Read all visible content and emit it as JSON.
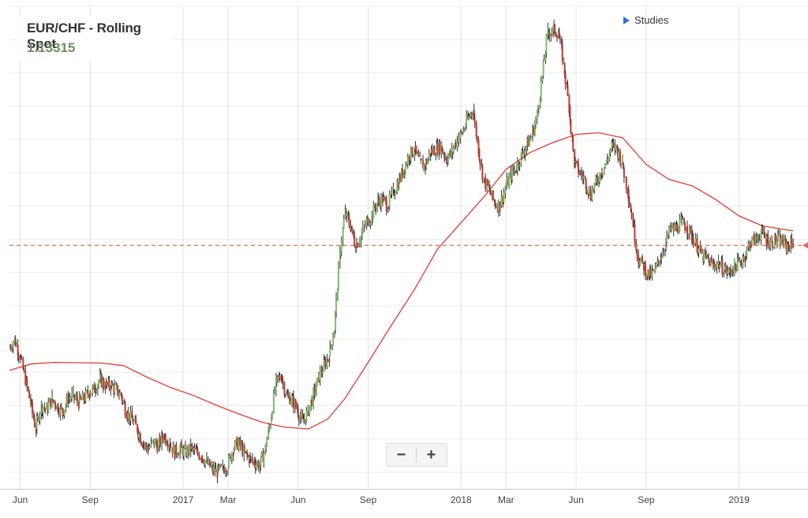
{
  "header": {
    "title": "EUR/CHF - Rolling Spot",
    "price": "1.13315"
  },
  "studies_label": "Studies",
  "zoom": {
    "minus": "−",
    "plus": "+"
  },
  "colors": {
    "up": "#7fbf6a",
    "down": "#c0392b",
    "wick": "#333333",
    "ma": "#e23a2e",
    "price_line": "#e2694f",
    "grid": "#ececec",
    "vgrid": "#e2e2e2"
  },
  "chart_data": {
    "type": "line",
    "title": "EUR/CHF - Rolling Spot",
    "last_price": 1.13315,
    "x_start": "2016-05-18",
    "x_end": "2019-03-18",
    "ylim": [
      1.06,
      1.205
    ],
    "grid": true,
    "x_ticks": [
      {
        "label": "Jun",
        "date": "2016-06-01"
      },
      {
        "label": "Sep",
        "date": "2016-09-01"
      },
      {
        "label": "2017",
        "date": "2017-01-01"
      },
      {
        "label": "Mar",
        "date": "2017-03-01"
      },
      {
        "label": "Jun",
        "date": "2017-06-01"
      },
      {
        "label": "Sep",
        "date": "2017-09-01"
      },
      {
        "label": "2018",
        "date": "2018-01-01"
      },
      {
        "label": "Mar",
        "date": "2018-03-01"
      },
      {
        "label": "Jun",
        "date": "2018-06-01"
      },
      {
        "label": "Sep",
        "date": "2018-09-01"
      },
      {
        "label": "2019",
        "date": "2019-01-01"
      }
    ],
    "series": [
      {
        "style": "candlestick",
        "points": [
          [
            "2016-05-18",
            1.102
          ],
          [
            "2016-05-25",
            1.105
          ],
          [
            "2016-06-01",
            1.1
          ],
          [
            "2016-06-08",
            1.093
          ],
          [
            "2016-06-15",
            1.086
          ],
          [
            "2016-06-22",
            1.078
          ],
          [
            "2016-06-29",
            1.085
          ],
          [
            "2016-07-06",
            1.084
          ],
          [
            "2016-07-13",
            1.087
          ],
          [
            "2016-07-20",
            1.085
          ],
          [
            "2016-07-27",
            1.083
          ],
          [
            "2016-08-03",
            1.087
          ],
          [
            "2016-08-10",
            1.088
          ],
          [
            "2016-08-17",
            1.086
          ],
          [
            "2016-08-24",
            1.087
          ],
          [
            "2016-08-31",
            1.089
          ],
          [
            "2016-09-07",
            1.09
          ],
          [
            "2016-09-14",
            1.093
          ],
          [
            "2016-09-21",
            1.091
          ],
          [
            "2016-09-28",
            1.091
          ],
          [
            "2016-10-05",
            1.09
          ],
          [
            "2016-10-12",
            1.088
          ],
          [
            "2016-10-19",
            1.083
          ],
          [
            "2016-10-26",
            1.081
          ],
          [
            "2016-11-02",
            1.078
          ],
          [
            "2016-11-09",
            1.074
          ],
          [
            "2016-11-16",
            1.072
          ],
          [
            "2016-11-23",
            1.074
          ],
          [
            "2016-11-30",
            1.073
          ],
          [
            "2016-12-07",
            1.076
          ],
          [
            "2016-12-14",
            1.074
          ],
          [
            "2016-12-21",
            1.071
          ],
          [
            "2016-12-28",
            1.072
          ],
          [
            "2017-01-04",
            1.071
          ],
          [
            "2017-01-11",
            1.072
          ],
          [
            "2017-01-18",
            1.071
          ],
          [
            "2017-01-25",
            1.07
          ],
          [
            "2017-02-01",
            1.068
          ],
          [
            "2017-02-08",
            1.066
          ],
          [
            "2017-02-15",
            1.065
          ],
          [
            "2017-02-22",
            1.066
          ],
          [
            "2017-03-01",
            1.067
          ],
          [
            "2017-03-08",
            1.072
          ],
          [
            "2017-03-15",
            1.074
          ],
          [
            "2017-03-22",
            1.071
          ],
          [
            "2017-03-29",
            1.069
          ],
          [
            "2017-04-05",
            1.068
          ],
          [
            "2017-04-12",
            1.067
          ],
          [
            "2017-04-19",
            1.072
          ],
          [
            "2017-04-26",
            1.08
          ],
          [
            "2017-05-03",
            1.092
          ],
          [
            "2017-05-10",
            1.094
          ],
          [
            "2017-05-17",
            1.088
          ],
          [
            "2017-05-24",
            1.087
          ],
          [
            "2017-05-31",
            1.084
          ],
          [
            "2017-06-07",
            1.08
          ],
          [
            "2017-06-14",
            1.083
          ],
          [
            "2017-06-21",
            1.088
          ],
          [
            "2017-06-28",
            1.093
          ],
          [
            "2017-07-05",
            1.097
          ],
          [
            "2017-07-12",
            1.1
          ],
          [
            "2017-07-19",
            1.108
          ],
          [
            "2017-07-26",
            1.13
          ],
          [
            "2017-08-02",
            1.143
          ],
          [
            "2017-08-09",
            1.139
          ],
          [
            "2017-08-16",
            1.133
          ],
          [
            "2017-08-23",
            1.136
          ],
          [
            "2017-08-30",
            1.14
          ],
          [
            "2017-09-06",
            1.142
          ],
          [
            "2017-09-13",
            1.146
          ],
          [
            "2017-09-20",
            1.147
          ],
          [
            "2017-09-27",
            1.145
          ],
          [
            "2017-10-04",
            1.149
          ],
          [
            "2017-10-11",
            1.152
          ],
          [
            "2017-10-18",
            1.156
          ],
          [
            "2017-10-25",
            1.16
          ],
          [
            "2017-11-01",
            1.162
          ],
          [
            "2017-11-08",
            1.158
          ],
          [
            "2017-11-15",
            1.157
          ],
          [
            "2017-11-22",
            1.161
          ],
          [
            "2017-11-29",
            1.162
          ],
          [
            "2017-12-06",
            1.163
          ],
          [
            "2017-12-13",
            1.159
          ],
          [
            "2017-12-20",
            1.161
          ],
          [
            "2017-12-27",
            1.165
          ],
          [
            "2018-01-03",
            1.167
          ],
          [
            "2018-01-10",
            1.171
          ],
          [
            "2018-01-17",
            1.174
          ],
          [
            "2018-01-24",
            1.162
          ],
          [
            "2018-01-31",
            1.153
          ],
          [
            "2018-02-07",
            1.15
          ],
          [
            "2018-02-14",
            1.146
          ],
          [
            "2018-02-21",
            1.145
          ],
          [
            "2018-02-28",
            1.15
          ],
          [
            "2018-03-07",
            1.154
          ],
          [
            "2018-03-14",
            1.156
          ],
          [
            "2018-03-21",
            1.16
          ],
          [
            "2018-03-28",
            1.163
          ],
          [
            "2018-04-04",
            1.166
          ],
          [
            "2018-04-11",
            1.172
          ],
          [
            "2018-04-18",
            1.184
          ],
          [
            "2018-04-25",
            1.197
          ],
          [
            "2018-05-02",
            1.198
          ],
          [
            "2018-05-09",
            1.197
          ],
          [
            "2018-05-16",
            1.188
          ],
          [
            "2018-05-23",
            1.175
          ],
          [
            "2018-05-30",
            1.158
          ],
          [
            "2018-06-06",
            1.155
          ],
          [
            "2018-06-13",
            1.153
          ],
          [
            "2018-06-20",
            1.148
          ],
          [
            "2018-06-27",
            1.152
          ],
          [
            "2018-07-04",
            1.155
          ],
          [
            "2018-07-11",
            1.158
          ],
          [
            "2018-07-18",
            1.163
          ],
          [
            "2018-07-25",
            1.162
          ],
          [
            "2018-08-01",
            1.158
          ],
          [
            "2018-08-08",
            1.15
          ],
          [
            "2018-08-15",
            1.14
          ],
          [
            "2018-08-22",
            1.129
          ],
          [
            "2018-08-29",
            1.127
          ],
          [
            "2018-09-05",
            1.124
          ],
          [
            "2018-09-12",
            1.125
          ],
          [
            "2018-09-19",
            1.129
          ],
          [
            "2018-09-26",
            1.133
          ],
          [
            "2018-10-03",
            1.138
          ],
          [
            "2018-10-10",
            1.138
          ],
          [
            "2018-10-17",
            1.14
          ],
          [
            "2018-10-24",
            1.139
          ],
          [
            "2018-10-31",
            1.136
          ],
          [
            "2018-11-07",
            1.133
          ],
          [
            "2018-11-14",
            1.13
          ],
          [
            "2018-11-21",
            1.129
          ],
          [
            "2018-11-28",
            1.127
          ],
          [
            "2018-12-05",
            1.128
          ],
          [
            "2018-12-12",
            1.126
          ],
          [
            "2018-12-19",
            1.125
          ],
          [
            "2018-12-26",
            1.127
          ],
          [
            "2019-01-02",
            1.128
          ],
          [
            "2019-01-09",
            1.13
          ],
          [
            "2019-01-16",
            1.134
          ],
          [
            "2019-01-23",
            1.135
          ],
          [
            "2019-01-30",
            1.137
          ],
          [
            "2019-02-06",
            1.135
          ],
          [
            "2019-02-13",
            1.134
          ],
          [
            "2019-02-20",
            1.135
          ],
          [
            "2019-02-27",
            1.134
          ],
          [
            "2019-03-06",
            1.133
          ],
          [
            "2019-03-13",
            1.134
          ]
        ]
      },
      {
        "style": "moving-average",
        "points": [
          [
            "2016-05-18",
            1.0956
          ],
          [
            "2016-06-15",
            1.0975
          ],
          [
            "2016-07-15",
            1.098
          ],
          [
            "2016-08-15",
            1.0979
          ],
          [
            "2016-09-15",
            1.0978
          ],
          [
            "2016-10-15",
            1.097
          ],
          [
            "2016-11-15",
            1.0935
          ],
          [
            "2016-12-15",
            1.0905
          ],
          [
            "2017-01-15",
            1.088
          ],
          [
            "2017-02-15",
            1.085
          ],
          [
            "2017-03-15",
            1.0825
          ],
          [
            "2017-04-15",
            1.08
          ],
          [
            "2017-05-15",
            1.0785
          ],
          [
            "2017-06-15",
            1.078
          ],
          [
            "2017-07-10",
            1.081
          ],
          [
            "2017-08-01",
            1.087
          ],
          [
            "2017-09-01",
            1.098
          ],
          [
            "2017-10-01",
            1.109
          ],
          [
            "2017-11-01",
            1.12
          ],
          [
            "2017-12-01",
            1.132
          ],
          [
            "2018-01-01",
            1.14
          ],
          [
            "2018-02-01",
            1.148
          ],
          [
            "2018-03-01",
            1.156
          ],
          [
            "2018-04-01",
            1.161
          ],
          [
            "2018-05-01",
            1.164
          ],
          [
            "2018-06-01",
            1.1665
          ],
          [
            "2018-07-01",
            1.167
          ],
          [
            "2018-08-01",
            1.1655
          ],
          [
            "2018-09-01",
            1.1575
          ],
          [
            "2018-10-01",
            1.153
          ],
          [
            "2018-11-01",
            1.151
          ],
          [
            "2018-12-01",
            1.147
          ],
          [
            "2019-01-01",
            1.142
          ],
          [
            "2019-02-01",
            1.139
          ],
          [
            "2019-03-13",
            1.1375
          ]
        ]
      }
    ]
  }
}
